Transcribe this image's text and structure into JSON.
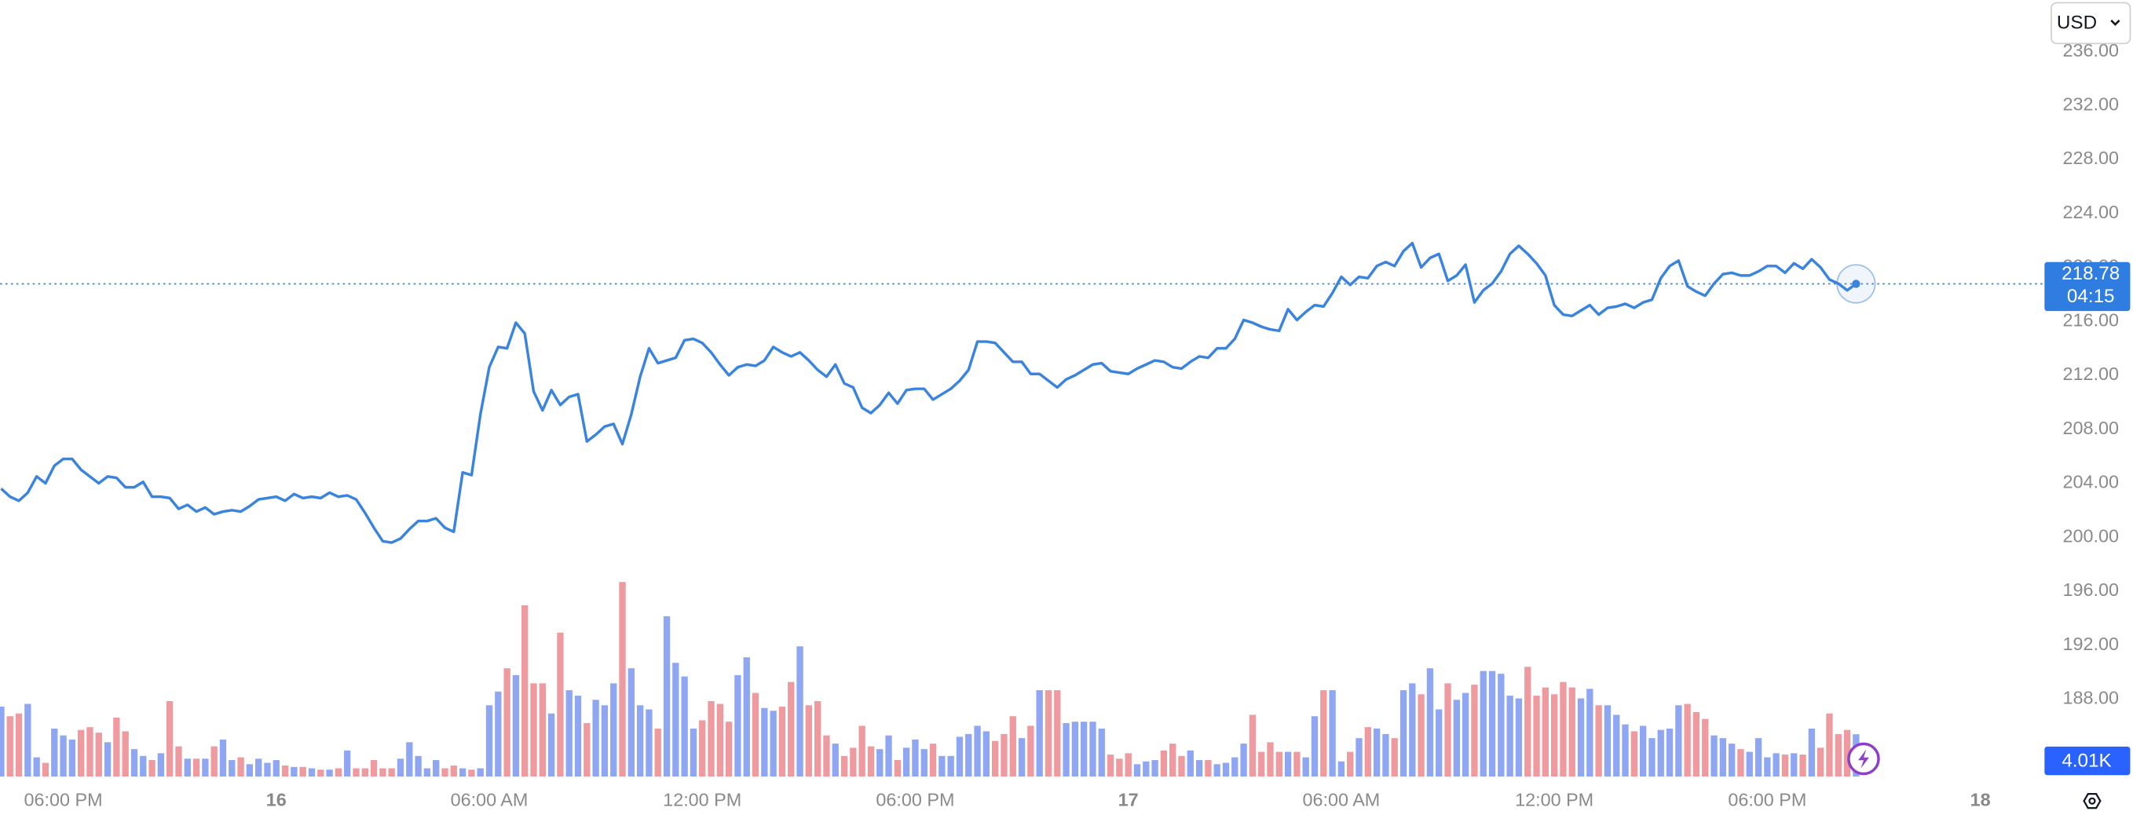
{
  "chart_data": {
    "type": "line",
    "x": [
      -7.75,
      -7.5,
      -7.25,
      -7,
      -6.75,
      -6.5,
      -6.25,
      -6,
      -5.75,
      -5.5,
      -5.25,
      -5,
      -4.75,
      -4.5,
      -4.25,
      -4,
      -3.75,
      -3.5,
      -3.25,
      -3,
      -2.75,
      -2.5,
      -2.25,
      -2,
      -1.75,
      -1.5,
      -1.25,
      -1,
      -0.75,
      -0.5,
      -0.25,
      0,
      0.25,
      0.5,
      0.75,
      1,
      1.25,
      1.5,
      1.75,
      2,
      2.25,
      2.5,
      2.75,
      3,
      3.25,
      3.5,
      3.75,
      4,
      4.25,
      4.5,
      4.75,
      5,
      5.25,
      5.5,
      5.75,
      6,
      6.25,
      6.5,
      6.75,
      7,
      7.25,
      7.5,
      7.75,
      8,
      8.25,
      8.5,
      8.75,
      9,
      9.25,
      9.5,
      9.75,
      10,
      10.25,
      10.5,
      10.75,
      11,
      11.25,
      11.5,
      11.75,
      12,
      12.25,
      12.5,
      12.75,
      13,
      13.25,
      13.5,
      13.75,
      14,
      14.25,
      14.5,
      14.75,
      15,
      15.25,
      15.5,
      15.75,
      16,
      16.25,
      16.5,
      16.75,
      17,
      17.25,
      17.5,
      17.75,
      18,
      18.25,
      18.5,
      18.75,
      19,
      19.25,
      19.5,
      19.75,
      20,
      20.25,
      20.5,
      20.75,
      21,
      21.25,
      21.5,
      21.75,
      22,
      22.25,
      22.5,
      22.75,
      23,
      23.25,
      23.5,
      23.75,
      24,
      24.25,
      24.5,
      24.75,
      25,
      25.25,
      25.5,
      25.75,
      26,
      26.25,
      26.5,
      26.75,
      27,
      27.25,
      27.5,
      27.75,
      28,
      28.25,
      28.5,
      28.75,
      29,
      29.25,
      29.5,
      29.75,
      30,
      30.25,
      30.5,
      30.75,
      31,
      31.25,
      31.5,
      31.75,
      32,
      32.25,
      32.5,
      32.75,
      33,
      33.25,
      33.5,
      33.75,
      34,
      34.25,
      34.5,
      34.75,
      35,
      35.25,
      35.5,
      35.75,
      36,
      36.25,
      36.5,
      36.75,
      37,
      37.25,
      37.5,
      37.75,
      38,
      38.25,
      38.5,
      38.75,
      39,
      39.25,
      39.5,
      39.75,
      40,
      40.25,
      40.5,
      40.75,
      41,
      41.25,
      41.5,
      41.75,
      42,
      42.25,
      42.5,
      42.75,
      43,
      43.25,
      43.5,
      43.75,
      44,
      44.25,
      44.5
    ],
    "series": [
      {
        "type": "line",
        "color": "#3b84de",
        "values": [
          203.6,
          203.0,
          202.7,
          203.3,
          204.5,
          204.0,
          205.3,
          205.8,
          205.8,
          205.0,
          204.5,
          204.0,
          204.5,
          204.4,
          203.7,
          203.7,
          204.1,
          203.0,
          203.0,
          202.9,
          202.1,
          202.4,
          201.9,
          202.2,
          201.7,
          201.9,
          202.0,
          201.9,
          202.3,
          202.8,
          202.9,
          203.0,
          202.7,
          203.2,
          202.9,
          203.0,
          202.9,
          203.3,
          203.0,
          203.1,
          202.8,
          201.8,
          200.7,
          199.7,
          199.6,
          199.9,
          200.6,
          201.2,
          201.2,
          201.4,
          200.7,
          200.4,
          204.8,
          204.6,
          209.1,
          212.6,
          214.1,
          214.0,
          215.9,
          215.1,
          210.8,
          209.4,
          210.9,
          209.8,
          210.4,
          210.6,
          207.1,
          207.6,
          208.2,
          208.4,
          206.9,
          209.1,
          211.9,
          214.0,
          212.9,
          213.1,
          213.3,
          214.6,
          214.7,
          214.4,
          213.7,
          212.8,
          212.0,
          212.6,
          212.8,
          212.7,
          213.1,
          214.1,
          213.7,
          213.4,
          213.7,
          213.1,
          212.4,
          211.9,
          212.8,
          211.4,
          211.1,
          209.6,
          209.2,
          209.8,
          210.7,
          209.9,
          210.9,
          211.0,
          211.0,
          210.2,
          210.6,
          211.0,
          211.6,
          212.4,
          214.5,
          214.5,
          214.4,
          213.7,
          213.0,
          213.0,
          212.1,
          212.1,
          211.6,
          211.1,
          211.7,
          212.0,
          212.4,
          212.8,
          212.9,
          212.3,
          212.2,
          212.1,
          212.5,
          212.8,
          213.1,
          213.0,
          212.6,
          212.5,
          213.0,
          213.4,
          213.3,
          214.0,
          214.0,
          214.7,
          216.1,
          215.9,
          215.6,
          215.4,
          215.3,
          216.9,
          216.1,
          216.7,
          217.2,
          217.1,
          218.1,
          219.3,
          218.7,
          219.3,
          219.2,
          220.1,
          220.4,
          220.1,
          221.2,
          221.8,
          220.0,
          220.7,
          221.0,
          219.0,
          219.4,
          220.2,
          217.4,
          218.3,
          218.8,
          219.7,
          221.0,
          221.6,
          221.0,
          220.3,
          219.4,
          217.2,
          216.5,
          216.4,
          216.8,
          217.2,
          216.5,
          217.0,
          217.1,
          217.3,
          217.0,
          217.4,
          217.6,
          219.2,
          220.1,
          220.5,
          218.6,
          218.2,
          217.9,
          218.8,
          219.5,
          219.6,
          219.4,
          219.4,
          219.7,
          220.1,
          220.1,
          219.6,
          220.3,
          219.9,
          220.6,
          220.0,
          219.1,
          218.8,
          218.3,
          218.78
        ]
      },
      {
        "type": "bar",
        "axis": "y2",
        "up_color": "#8fa6f2",
        "down_color": "#ee9a9f",
        "values": [
          6630,
          5720,
          5980,
          6890,
          1820,
          1300,
          4550,
          3900,
          3510,
          4420,
          4680,
          4160,
          3250,
          5590,
          4290,
          2600,
          1950,
          1560,
          2210,
          7150,
          2860,
          1690,
          1690,
          1690,
          2860,
          3510,
          1560,
          1820,
          1170,
          1690,
          1300,
          1560,
          1040,
          910,
          910,
          780,
          650,
          650,
          780,
          2470,
          780,
          780,
          1560,
          780,
          780,
          1690,
          3250,
          1950,
          780,
          1560,
          780,
          1040,
          780,
          650,
          780,
          6760,
          8060,
          10270,
          9620,
          16250,
          8840,
          8840,
          5980,
          13650,
          8190,
          7670,
          5070,
          7280,
          6760,
          8840,
          18460,
          10270,
          6760,
          6370,
          4550,
          15210,
          10790,
          9490,
          4550,
          5330,
          7150,
          6890,
          5200,
          9620,
          11310,
          7930,
          6500,
          6240,
          6630,
          8970,
          12350,
          6760,
          7150,
          3900,
          3120,
          1950,
          2730,
          4810,
          2860,
          2600,
          3900,
          1560,
          2730,
          3510,
          2600,
          3120,
          1950,
          1950,
          3770,
          4030,
          4810,
          4290,
          3380,
          4030,
          5720,
          3640,
          4810,
          8190,
          8190,
          8190,
          5070,
          5200,
          5200,
          5200,
          4550,
          2080,
          1690,
          2210,
          1170,
          1430,
          1560,
          2470,
          3120,
          1950,
          2470,
          1560,
          1560,
          1170,
          1300,
          1820,
          3120,
          5850,
          2340,
          3250,
          2340,
          2340,
          2340,
          1820,
          5720,
          8190,
          8190,
          1430,
          2340,
          3640,
          4680,
          4550,
          4030,
          3640,
          8190,
          8840,
          7800,
          10270,
          6370,
          8840,
          7280,
          7930,
          8710,
          10010,
          10010,
          9750,
          7670,
          7410,
          10400,
          7670,
          8450,
          7800,
          8970,
          8450,
          7410,
          8320,
          6760,
          6760,
          5850,
          4940,
          4290,
          4810,
          3640,
          4420,
          4550,
          6760,
          6890,
          6110,
          5460,
          3900,
          3640,
          3120,
          2600,
          2340,
          3640,
          1820,
          2210,
          2080,
          2210,
          2080,
          4550,
          2730,
          5980,
          4030,
          4420,
          4010
        ],
        "last_label": "4.01K"
      }
    ],
    "xlim": [
      -7.78,
      49.77
    ],
    "xticks": [
      {
        "value": -6,
        "label": "06:00 PM"
      },
      {
        "value": 0,
        "label": "16"
      },
      {
        "value": 6,
        "label": "06:00 AM"
      },
      {
        "value": 12,
        "label": "12:00 PM"
      },
      {
        "value": 18,
        "label": "06:00 PM"
      },
      {
        "value": 24,
        "label": "17"
      },
      {
        "value": 30,
        "label": "06:00 AM"
      },
      {
        "value": 36,
        "label": "12:00 PM"
      },
      {
        "value": 42,
        "label": "06:00 PM"
      },
      {
        "value": 48,
        "label": "18"
      }
    ],
    "ylim": [
      182.26,
      239.82
    ],
    "yticks": [
      {
        "value": 188,
        "label": "188.00"
      },
      {
        "value": 192,
        "label": "192.00"
      },
      {
        "value": 196,
        "label": "196.00"
      },
      {
        "value": 200,
        "label": "200.00"
      },
      {
        "value": 204,
        "label": "204.00"
      },
      {
        "value": 208,
        "label": "208.00"
      },
      {
        "value": 212,
        "label": "212.00"
      },
      {
        "value": 216,
        "label": "216.00"
      },
      {
        "value": 220,
        "label": "220.00"
      },
      {
        "value": 224,
        "label": "224.00"
      },
      {
        "value": 228,
        "label": "228.00"
      },
      {
        "value": 232,
        "label": "232.00"
      },
      {
        "value": 236,
        "label": "236.00"
      }
    ],
    "y2lim": [
      0,
      20000
    ],
    "grid": false,
    "last_price": {
      "value": 218.78,
      "label": "218.78"
    },
    "countdown": "04:15",
    "currency": "USD"
  }
}
